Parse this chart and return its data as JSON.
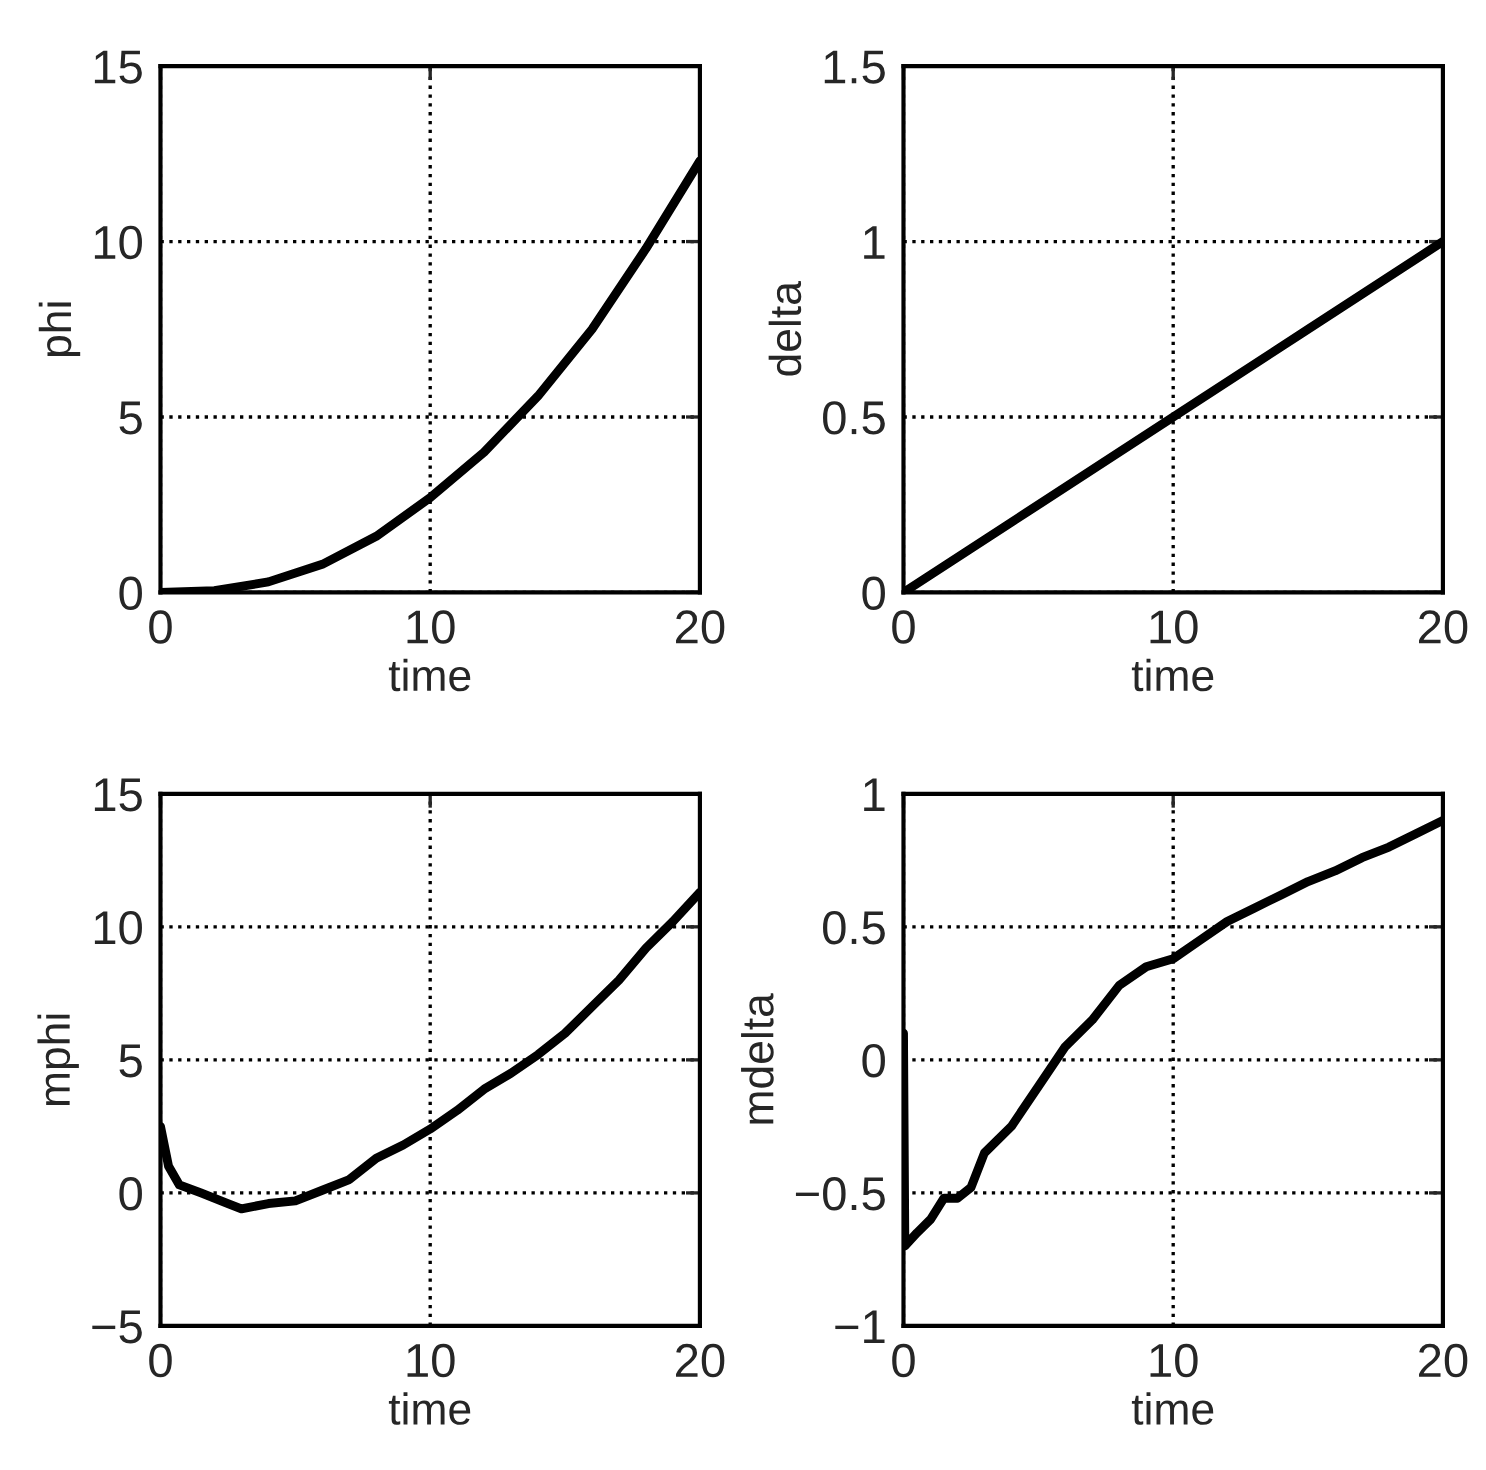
{
  "chart_data": [
    {
      "type": "line",
      "xlabel": "time",
      "ylabel": "phi",
      "xlim": [
        0,
        20
      ],
      "ylim": [
        0,
        15
      ],
      "xticks": [
        0,
        10,
        20
      ],
      "yticks": [
        0,
        5,
        10,
        15
      ],
      "grid": true,
      "line_style": "solid",
      "series": [
        {
          "color": "#000000",
          "x": [
            0,
            2,
            4,
            6,
            8,
            10,
            12,
            14,
            16,
            18,
            20
          ],
          "values": [
            0,
            0.05,
            0.3,
            0.8,
            1.6,
            2.7,
            4.0,
            5.6,
            7.5,
            9.8,
            12.3
          ]
        }
      ]
    },
    {
      "type": "line",
      "xlabel": "time",
      "ylabel": "delta",
      "xlim": [
        0,
        20
      ],
      "ylim": [
        0,
        1.5
      ],
      "xticks": [
        0,
        10,
        20
      ],
      "yticks": [
        0,
        0.5,
        1,
        1.5
      ],
      "grid": true,
      "line_style": "solid",
      "series": [
        {
          "color": "#000000",
          "x": [
            0,
            5,
            10,
            15,
            20
          ],
          "values": [
            0,
            0.25,
            0.5,
            0.75,
            1.0
          ]
        }
      ]
    },
    {
      "type": "line",
      "xlabel": "time",
      "ylabel": "mphi",
      "xlim": [
        0,
        20
      ],
      "ylim": [
        -5,
        15
      ],
      "xticks": [
        0,
        10,
        20
      ],
      "yticks": [
        {
          "value": -5,
          "label": "−5"
        },
        0,
        5,
        10,
        15
      ],
      "grid": true,
      "line_style": "solid",
      "series": [
        {
          "color": "#000000",
          "x": [
            0,
            0.3,
            0.7,
            1.5,
            2.5,
            3,
            4,
            5,
            6,
            7,
            8,
            9,
            10,
            11,
            12,
            13,
            14,
            15,
            16,
            17,
            18,
            19,
            20
          ],
          "values": [
            2.5,
            1.0,
            0.3,
            0.0,
            -0.4,
            -0.6,
            -0.4,
            -0.3,
            0.1,
            0.5,
            1.3,
            1.8,
            2.4,
            3.1,
            3.9,
            4.5,
            5.2,
            6.0,
            7.0,
            8.0,
            9.2,
            10.2,
            11.3
          ]
        }
      ]
    },
    {
      "type": "line",
      "xlabel": "time",
      "ylabel": "mdelta",
      "xlim": [
        0,
        20
      ],
      "ylim": [
        -1,
        1
      ],
      "xticks": [
        0,
        10,
        20
      ],
      "yticks": [
        {
          "value": -1,
          "label": "−1"
        },
        {
          "value": -0.5,
          "label": "−0.5"
        },
        0,
        0.5,
        1
      ],
      "grid": true,
      "line_style": "solid",
      "series": [
        {
          "color": "#000000",
          "x": [
            0,
            0.05,
            0.5,
            1,
            1.5,
            2,
            2.5,
            3,
            4,
            5,
            6,
            7,
            8,
            9,
            10,
            11,
            12,
            13,
            14,
            15,
            16,
            17,
            18,
            19,
            20
          ],
          "values": [
            0.1,
            -0.7,
            -0.65,
            -0.6,
            -0.52,
            -0.52,
            -0.48,
            -0.35,
            -0.25,
            -0.1,
            0.05,
            0.15,
            0.28,
            0.35,
            0.38,
            0.45,
            0.52,
            0.57,
            0.62,
            0.67,
            0.71,
            0.76,
            0.8,
            0.85,
            0.9
          ]
        }
      ]
    }
  ]
}
